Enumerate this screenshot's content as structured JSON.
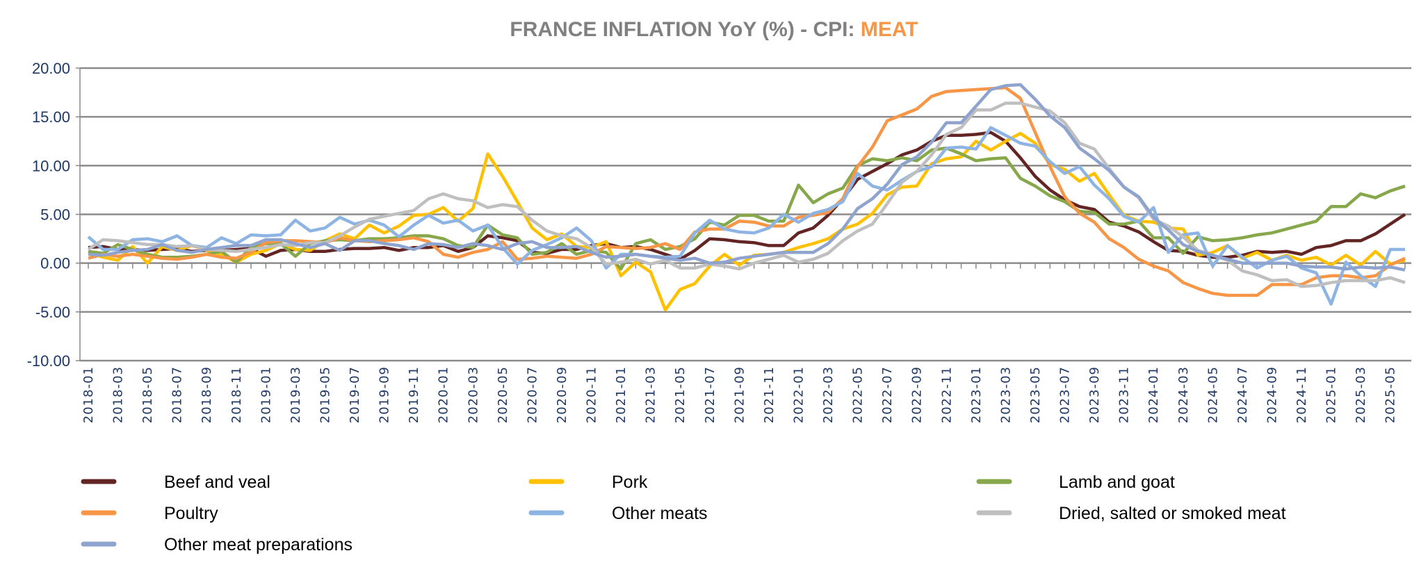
{
  "chart_data": {
    "type": "line",
    "title": "FRANCE INFLATION YoY (%) - CPI: ",
    "title_highlight": "MEAT",
    "title_color": "#808080",
    "title_highlight_color": "#F79646",
    "xlabel": "",
    "ylabel": "",
    "ylim": [
      -10,
      20
    ],
    "y_ticks": [
      "20.00",
      "15.00",
      "10.00",
      "5.00",
      "0.00",
      "-5.00",
      "-10.00"
    ],
    "y_tick_values": [
      20,
      15,
      10,
      5,
      0,
      -5,
      -10
    ],
    "grid": true,
    "legend_position": "bottom",
    "tick_label_color": "#1F3864",
    "x": [
      "2018-01",
      "2018-02",
      "2018-03",
      "2018-04",
      "2018-05",
      "2018-06",
      "2018-07",
      "2018-08",
      "2018-09",
      "2018-10",
      "2018-11",
      "2018-12",
      "2019-01",
      "2019-02",
      "2019-03",
      "2019-04",
      "2019-05",
      "2019-06",
      "2019-07",
      "2019-08",
      "2019-09",
      "2019-10",
      "2019-11",
      "2019-12",
      "2020-01",
      "2020-02",
      "2020-03",
      "2020-04",
      "2020-05",
      "2020-06",
      "2020-07",
      "2020-08",
      "2020-09",
      "2020-10",
      "2020-11",
      "2020-12",
      "2021-01",
      "2021-02",
      "2021-03",
      "2021-04",
      "2021-05",
      "2021-06",
      "2021-07",
      "2021-08",
      "2021-09",
      "2021-10",
      "2021-11",
      "2021-12",
      "2022-01",
      "2022-02",
      "2022-03",
      "2022-04",
      "2022-05",
      "2022-06",
      "2022-07",
      "2022-08",
      "2022-09",
      "2022-10",
      "2022-11",
      "2022-12",
      "2023-01",
      "2023-02",
      "2023-03",
      "2023-04",
      "2023-05",
      "2023-06",
      "2023-07",
      "2023-08",
      "2023-09",
      "2023-10",
      "2023-11",
      "2023-12",
      "2024-01",
      "2024-02",
      "2024-03",
      "2024-04",
      "2024-05",
      "2024-06",
      "2024-07",
      "2024-08",
      "2024-09",
      "2024-10",
      "2024-11",
      "2024-12",
      "2025-01",
      "2025-02",
      "2025-03",
      "2025-04",
      "2025-05",
      "2025-06"
    ],
    "x_tick_labels": [
      "2018-01",
      "2018-03",
      "2018-05",
      "2018-07",
      "2018-09",
      "2018-11",
      "2019-01",
      "2019-03",
      "2019-05",
      "2019-07",
      "2019-09",
      "2019-11",
      "2020-01",
      "2020-03",
      "2020-05",
      "2020-07",
      "2020-09",
      "2020-11",
      "2021-01",
      "2021-03",
      "2021-05",
      "2021-07",
      "2021-09",
      "2021-11",
      "2022-01",
      "2022-03",
      "2022-05",
      "2022-07",
      "2022-09",
      "2022-11",
      "2023-01",
      "2023-03",
      "2023-05",
      "2023-07",
      "2023-09",
      "2023-11",
      "2024-01",
      "2024-03",
      "2024-05",
      "2024-07",
      "2024-09",
      "2024-11",
      "2025-01",
      "2025-03",
      "2025-05"
    ],
    "series": [
      {
        "name": "Beef and veal",
        "color": "#632523",
        "values": [
          1.6,
          1.7,
          1.4,
          1.4,
          1.3,
          1.4,
          1.5,
          1.2,
          1.3,
          1.3,
          1.4,
          1.5,
          0.7,
          1.3,
          1.4,
          1.2,
          1.2,
          1.4,
          1.5,
          1.5,
          1.6,
          1.3,
          1.6,
          1.6,
          1.8,
          1.2,
          1.6,
          2.8,
          2.6,
          2.3,
          1.1,
          1.0,
          1.4,
          1.4,
          1.8,
          2.0,
          1.6,
          1.7,
          1.4,
          0.9,
          0.4,
          1.3,
          2.5,
          2.4,
          2.2,
          2.1,
          1.8,
          1.8,
          3.1,
          3.6,
          4.9,
          6.6,
          8.6,
          9.4,
          10.2,
          11.1,
          11.6,
          12.5,
          13.1,
          13.1,
          13.2,
          13.4,
          12.5,
          10.8,
          8.9,
          7.5,
          6.5,
          5.8,
          5.5,
          4.2,
          3.8,
          3.2,
          2.2,
          1.3,
          1.2,
          0.8,
          0.6,
          0.6,
          0.8,
          1.2,
          1.1,
          1.2,
          0.9,
          1.6,
          1.8,
          2.3,
          2.3,
          3.0,
          4.0,
          5.0
        ]
      },
      {
        "name": "Pork",
        "color": "#FFC000",
        "values": [
          1.1,
          0.6,
          0.3,
          1.7,
          0.0,
          1.7,
          1.3,
          1.8,
          1.3,
          0.9,
          0.1,
          0.9,
          1.3,
          2.0,
          1.4,
          1.3,
          2.3,
          3.0,
          2.5,
          3.9,
          3.1,
          3.8,
          4.9,
          5.0,
          5.7,
          4.3,
          5.6,
          11.2,
          8.9,
          6.3,
          3.6,
          2.4,
          3.0,
          1.7,
          1.6,
          2.2,
          -1.3,
          0.1,
          -0.9,
          -4.8,
          -2.7,
          -2.1,
          -0.3,
          0.9,
          -0.2,
          0.8,
          0.9,
          1.1,
          1.6,
          2.0,
          2.5,
          3.5,
          4.0,
          5.1,
          7.0,
          7.8,
          7.9,
          10.2,
          10.7,
          10.9,
          12.5,
          11.6,
          12.5,
          13.3,
          12.3,
          10.1,
          9.6,
          8.4,
          9.2,
          7.0,
          4.9,
          4.3,
          4.2,
          3.6,
          3.5,
          0.8,
          1.1,
          1.8,
          0.5,
          1.1,
          0.3,
          0.8,
          0.3,
          0.6,
          -0.2,
          0.8,
          -0.2,
          1.2,
          -0.1,
          0.3
        ]
      },
      {
        "name": "Lamb and goat",
        "color": "#86A84A",
        "values": [
          1.2,
          1.0,
          1.9,
          1.4,
          0.9,
          0.6,
          0.6,
          0.7,
          0.9,
          1.2,
          0.1,
          1.6,
          2.0,
          2.0,
          0.7,
          2.0,
          2.3,
          2.4,
          2.3,
          2.5,
          2.5,
          2.6,
          2.8,
          2.8,
          2.5,
          1.8,
          1.6,
          3.9,
          2.9,
          2.6,
          0.9,
          1.1,
          2.0,
          0.9,
          1.3,
          1.1,
          -0.6,
          2.0,
          2.4,
          1.4,
          1.7,
          2.5,
          4.2,
          3.9,
          4.9,
          4.9,
          4.3,
          4.3,
          8.0,
          6.2,
          7.1,
          7.7,
          10.0,
          10.7,
          10.5,
          10.8,
          10.5,
          11.6,
          11.8,
          11.2,
          10.5,
          10.7,
          10.8,
          8.7,
          7.9,
          6.9,
          6.3,
          5.3,
          5.2,
          4.0,
          4.0,
          4.3,
          2.6,
          2.6,
          1.0,
          2.7,
          2.3,
          2.4,
          2.6,
          2.9,
          3.1,
          3.5,
          3.9,
          4.3,
          5.8,
          5.8,
          7.1,
          6.7,
          7.4,
          7.9
        ]
      },
      {
        "name": "Poultry",
        "color": "#F79646",
        "values": [
          0.5,
          0.9,
          0.7,
          0.9,
          0.7,
          0.5,
          0.4,
          0.6,
          0.9,
          0.6,
          0.5,
          1.1,
          2.1,
          2.3,
          2.3,
          2.2,
          2.1,
          2.6,
          2.3,
          2.2,
          2.3,
          2.4,
          2.6,
          2.2,
          0.9,
          0.6,
          1.1,
          1.4,
          2.2,
          0.4,
          0.5,
          0.7,
          0.6,
          0.5,
          0.9,
          1.7,
          1.6,
          1.5,
          1.6,
          2.0,
          1.4,
          3.2,
          3.5,
          3.5,
          4.3,
          4.2,
          3.8,
          3.8,
          4.7,
          4.9,
          5.2,
          6.6,
          9.9,
          11.9,
          14.6,
          15.2,
          15.8,
          17.1,
          17.6,
          17.7,
          17.8,
          17.9,
          18.0,
          16.9,
          13.4,
          9.9,
          6.8,
          5.1,
          4.2,
          2.5,
          1.6,
          0.4,
          -0.3,
          -0.8,
          -2.0,
          -2.6,
          -3.1,
          -3.3,
          -3.3,
          -3.3,
          -2.2,
          -2.2,
          -2.2,
          -1.5,
          -1.3,
          -1.3,
          -1.5,
          -1.3,
          -0.2,
          0.5
        ]
      },
      {
        "name": "Other meats",
        "color": "#8DB4E2",
        "values": [
          2.7,
          1.4,
          1.4,
          2.4,
          2.5,
          2.2,
          2.8,
          1.8,
          1.6,
          2.6,
          2.0,
          2.9,
          2.8,
          2.9,
          4.4,
          3.3,
          3.6,
          4.7,
          4.0,
          4.4,
          3.9,
          2.7,
          3.9,
          4.9,
          4.1,
          4.4,
          3.3,
          3.9,
          1.6,
          -0.1,
          1.3,
          1.9,
          2.6,
          3.6,
          2.3,
          -0.5,
          0.9,
          0.9,
          0.7,
          0.6,
          0.7,
          3.1,
          4.4,
          3.5,
          3.2,
          3.1,
          3.6,
          5.0,
          4.2,
          5.1,
          5.5,
          6.3,
          9.2,
          7.9,
          7.5,
          8.5,
          9.4,
          9.9,
          11.8,
          11.9,
          11.7,
          13.9,
          13.1,
          12.3,
          12.0,
          10.4,
          9.2,
          9.9,
          8.0,
          6.6,
          4.8,
          4.2,
          5.7,
          1.1,
          2.9,
          3.1,
          -0.3,
          1.8,
          0.6,
          -0.5,
          0.3,
          0.7,
          -0.5,
          -1.0,
          -4.2,
          0.1,
          -1.3,
          -2.4,
          1.4,
          1.4
        ]
      },
      {
        "name": "Dried, salted or smoked meat",
        "color": "#BFBFBF",
        "values": [
          1.4,
          2.4,
          2.3,
          2.1,
          1.9,
          1.9,
          1.7,
          1.8,
          1.4,
          1.3,
          1.2,
          1.4,
          1.6,
          1.9,
          1.8,
          2.1,
          2.1,
          2.8,
          3.7,
          4.5,
          4.8,
          5.1,
          5.4,
          6.6,
          7.1,
          6.6,
          6.4,
          5.7,
          6.0,
          5.8,
          4.4,
          3.3,
          2.8,
          2.5,
          1.6,
          -0.1,
          0.1,
          0.4,
          -0.1,
          0.3,
          -0.5,
          -0.5,
          -0.1,
          -0.3,
          -0.6,
          0.0,
          0.4,
          0.8,
          0.1,
          0.4,
          1.0,
          2.3,
          3.3,
          4.0,
          6.1,
          8.3,
          9.4,
          11.1,
          13.2,
          13.9,
          15.7,
          15.7,
          16.4,
          16.4,
          16.0,
          15.6,
          14.4,
          12.3,
          11.7,
          9.7,
          7.8,
          6.7,
          4.5,
          3.8,
          2.7,
          1.3,
          0.8,
          0.3,
          -0.8,
          -1.2,
          -1.8,
          -1.7,
          -2.4,
          -2.3,
          -2.0,
          -1.8,
          -1.8,
          -1.8,
          -1.5,
          -2.0
        ]
      },
      {
        "name": "Other meat preparations",
        "color": "#8EA3CE",
        "values": [
          0.9,
          0.8,
          1.1,
          1.3,
          1.4,
          1.9,
          1.3,
          1.1,
          1.4,
          1.6,
          1.8,
          1.8,
          2.4,
          2.4,
          2.0,
          1.6,
          2.0,
          1.3,
          2.3,
          2.3,
          2.0,
          1.8,
          1.4,
          2.0,
          1.9,
          1.6,
          2.0,
          1.8,
          1.4,
          2.0,
          2.2,
          1.6,
          1.6,
          1.7,
          1.1,
          0.6,
          0.7,
          0.9,
          0.7,
          0.5,
          0.3,
          0.5,
          0.0,
          0.1,
          0.5,
          0.7,
          0.9,
          1.1,
          1.1,
          1.1,
          2.0,
          3.5,
          5.6,
          6.6,
          8.1,
          10.1,
          10.9,
          12.4,
          14.4,
          14.4,
          16.1,
          17.8,
          18.2,
          18.3,
          16.8,
          15.1,
          13.9,
          11.8,
          10.7,
          9.5,
          7.8,
          6.8,
          4.7,
          3.4,
          1.9,
          1.2,
          0.8,
          0.4,
          0.0,
          0.0,
          0.0,
          0.0,
          -0.3,
          -0.4,
          -0.4,
          -0.6,
          -0.4,
          -0.5,
          -0.4,
          -0.7
        ]
      }
    ],
    "legend_order": [
      0,
      2,
      4,
      3,
      5,
      6,
      1
    ]
  }
}
